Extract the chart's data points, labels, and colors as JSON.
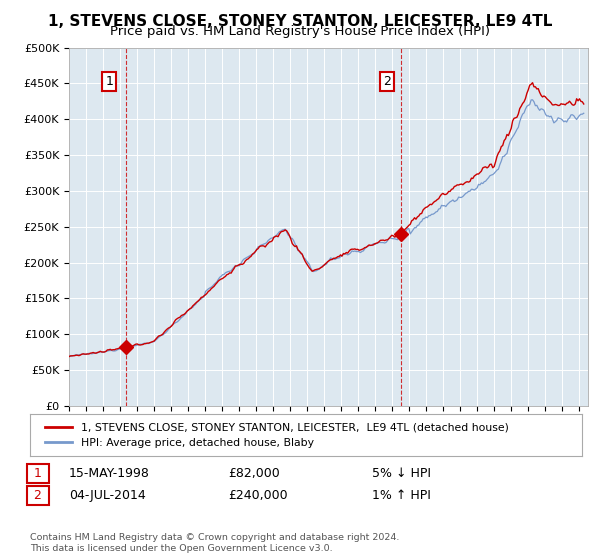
{
  "title": "1, STEVENS CLOSE, STONEY STANTON, LEICESTER, LE9 4TL",
  "subtitle": "Price paid vs. HM Land Registry's House Price Index (HPI)",
  "ylim": [
    0,
    500000
  ],
  "yticks": [
    0,
    50000,
    100000,
    150000,
    200000,
    250000,
    300000,
    350000,
    400000,
    450000,
    500000
  ],
  "ytick_labels": [
    "£0",
    "£50K",
    "£100K",
    "£150K",
    "£200K",
    "£250K",
    "£300K",
    "£350K",
    "£400K",
    "£450K",
    "£500K"
  ],
  "xlim_start": 1995.0,
  "xlim_end": 2025.5,
  "sale1_x": 1998.37,
  "sale1_y": 82000,
  "sale1_label": "1",
  "sale2_x": 2014.5,
  "sale2_y": 240000,
  "sale2_label": "2",
  "red_line_color": "#cc0000",
  "blue_line_color": "#7799cc",
  "dashed_vline_color": "#cc0000",
  "plot_bg_color": "#dde8f0",
  "background_color": "#ffffff",
  "grid_color": "#ffffff",
  "legend_label_red": "1, STEVENS CLOSE, STONEY STANTON, LEICESTER,  LE9 4TL (detached house)",
  "legend_label_blue": "HPI: Average price, detached house, Blaby",
  "annotation1_date": "15-MAY-1998",
  "annotation1_price": "£82,000",
  "annotation1_hpi": "5% ↓ HPI",
  "annotation2_date": "04-JUL-2014",
  "annotation2_price": "£240,000",
  "annotation2_hpi": "1% ↑ HPI",
  "footer": "Contains HM Land Registry data © Crown copyright and database right 2024.\nThis data is licensed under the Open Government Licence v3.0.",
  "title_fontsize": 11,
  "subtitle_fontsize": 9.5
}
